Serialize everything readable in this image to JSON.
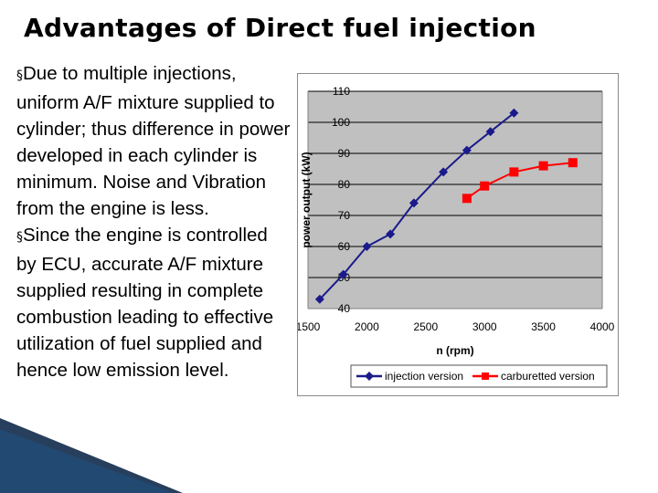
{
  "slide": {
    "title": "Advantages of Direct fuel injection",
    "bullets": [
      "Due to multiple injections, uniform A/F mixture supplied to cylinder; thus difference in power developed in each cylinder is minimum. Noise and Vibration from the engine is less.",
      "Since the engine is controlled by ECU, accurate A/F mixture supplied resulting in complete combustion leading to effective utilization of fuel supplied and hence low emission level."
    ],
    "bullet_symbol": "§"
  },
  "chart_data": {
    "type": "line",
    "title": "",
    "xlabel": "n (rpm)",
    "ylabel": "power output (kW)",
    "xlim": [
      1500,
      4000
    ],
    "ylim": [
      40,
      110
    ],
    "xticks": [
      1500,
      2000,
      2500,
      3000,
      3500,
      4000
    ],
    "yticks": [
      40,
      50,
      60,
      70,
      80,
      90,
      100,
      110
    ],
    "grid": "horizontal",
    "legend_position": "bottom",
    "series": [
      {
        "name": "injection version",
        "color": "#1a1a8c",
        "marker": "diamond",
        "x": [
          1600,
          1800,
          2000,
          2200,
          2400,
          2650,
          2850,
          3050,
          3250
        ],
        "y": [
          43,
          51,
          60,
          64,
          74,
          84,
          91,
          97,
          103
        ]
      },
      {
        "name": "carburetted version",
        "color": "#ff0000",
        "marker": "square",
        "x": [
          2850,
          3000,
          3250,
          3500,
          3750
        ],
        "y": [
          75.5,
          79.5,
          84,
          86,
          87
        ]
      }
    ]
  }
}
